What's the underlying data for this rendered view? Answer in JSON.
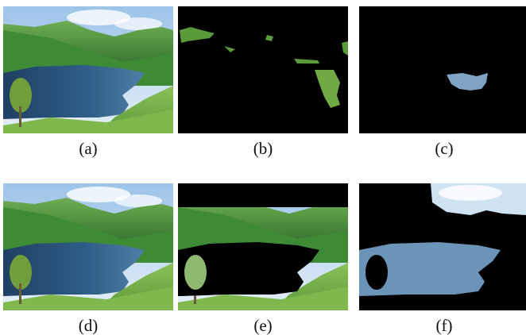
{
  "figure": {
    "panels": [
      {
        "id": "a",
        "caption": "(a)",
        "content": "original landscape photo",
        "icon": "landscape-photo-icon"
      },
      {
        "id": "b",
        "caption": "(b)",
        "content": "segmentation mask showing vegetation regions",
        "icon": "vegetation-mask-icon"
      },
      {
        "id": "c",
        "caption": "(c)",
        "content": "segmentation mask showing small lake region",
        "icon": "lake-mask-icon"
      },
      {
        "id": "d",
        "caption": "(d)",
        "content": "original landscape photo",
        "icon": "landscape-photo-icon"
      },
      {
        "id": "e",
        "caption": "(e)",
        "content": "segmentation with lake region blacked out",
        "icon": "hills-segment-icon"
      },
      {
        "id": "f",
        "caption": "(f)",
        "content": "segmentation showing lake and sky only",
        "icon": "lake-sky-segment-icon"
      }
    ]
  },
  "colors": {
    "sky": "#bcd8ef",
    "hill_green": "#4f9a3c",
    "lake_blue": "#2c5578",
    "mask_black": "#000000",
    "mask_lake": "#7fa3c4"
  }
}
